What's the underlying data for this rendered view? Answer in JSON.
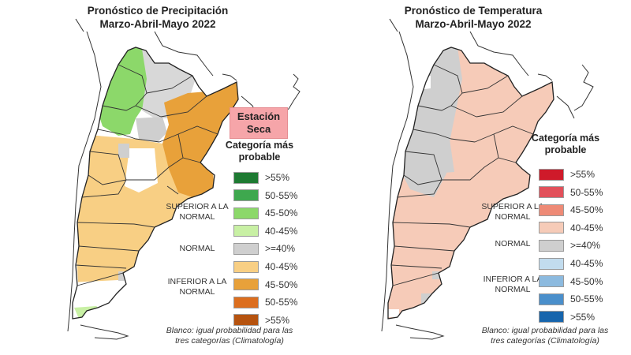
{
  "precip": {
    "title_line1": "Pronóstico de Precipitación",
    "title_line2": "Marzo-Abril-Mayo 2022",
    "badge": "Estación Seca",
    "legend_title": "Categoría más probable",
    "swatches": [
      {
        "label": ">55%",
        "color": "#1e7a32"
      },
      {
        "label": "50-55%",
        "color": "#3ea84e"
      },
      {
        "label": "45-50%",
        "color": "#8cd86a"
      },
      {
        "label": "40-45%",
        "color": "#c8f0a4"
      },
      {
        "label": ">=40%",
        "color": "#cfcfcf"
      },
      {
        "label": "40-45%",
        "color": "#f8cf84"
      },
      {
        "label": "45-50%",
        "color": "#e8a13a"
      },
      {
        "label": "50-55%",
        "color": "#dc6e1e"
      },
      {
        "label": ">55%",
        "color": "#b6530f"
      }
    ],
    "groups": {
      "superior": "SUPERIOR A LA NORMAL",
      "normal": "NORMAL",
      "inferior": "INFERIOR A LA NORMAL"
    },
    "note": "Blanco: igual probabilidad para las tres categorías (Climatología)"
  },
  "temp": {
    "title_line1": "Pronóstico de Temperatura",
    "title_line2": "Marzo-Abril-Mayo 2022",
    "legend_title": "Categoría más probable",
    "swatches": [
      {
        "label": ">55%",
        "color": "#cf1a2a"
      },
      {
        "label": "50-55%",
        "color": "#e2505a"
      },
      {
        "label": "45-50%",
        "color": "#ee8a76"
      },
      {
        "label": "40-45%",
        "color": "#f6cbb8"
      },
      {
        "label": ">=40%",
        "color": "#cfcfcf"
      },
      {
        "label": "40-45%",
        "color": "#c2dcee"
      },
      {
        "label": "45-50%",
        "color": "#8cbadf"
      },
      {
        "label": "50-55%",
        "color": "#4a8fcb"
      },
      {
        "label": ">55%",
        "color": "#1665ad"
      }
    ],
    "groups": {
      "superior": "SUPERIOR A LA NORMAL",
      "normal": "NORMAL",
      "inferior": "INFERIOR A LA NORMAL"
    },
    "note": "Blanco: igual probabilidad para las tres categorías (Climatología)"
  },
  "map_colors": {
    "outline": "#222222",
    "white": "#ffffff",
    "gray": "#cfcfcf",
    "light_gray": "#d8d8d8",
    "green": "#8cd86a",
    "light_green": "#c8f0a4",
    "light_orange": "#f8cf84",
    "orange": "#e8a13a",
    "salmon": "#f6cbb8",
    "badge_bg": "#f6a5a9"
  }
}
